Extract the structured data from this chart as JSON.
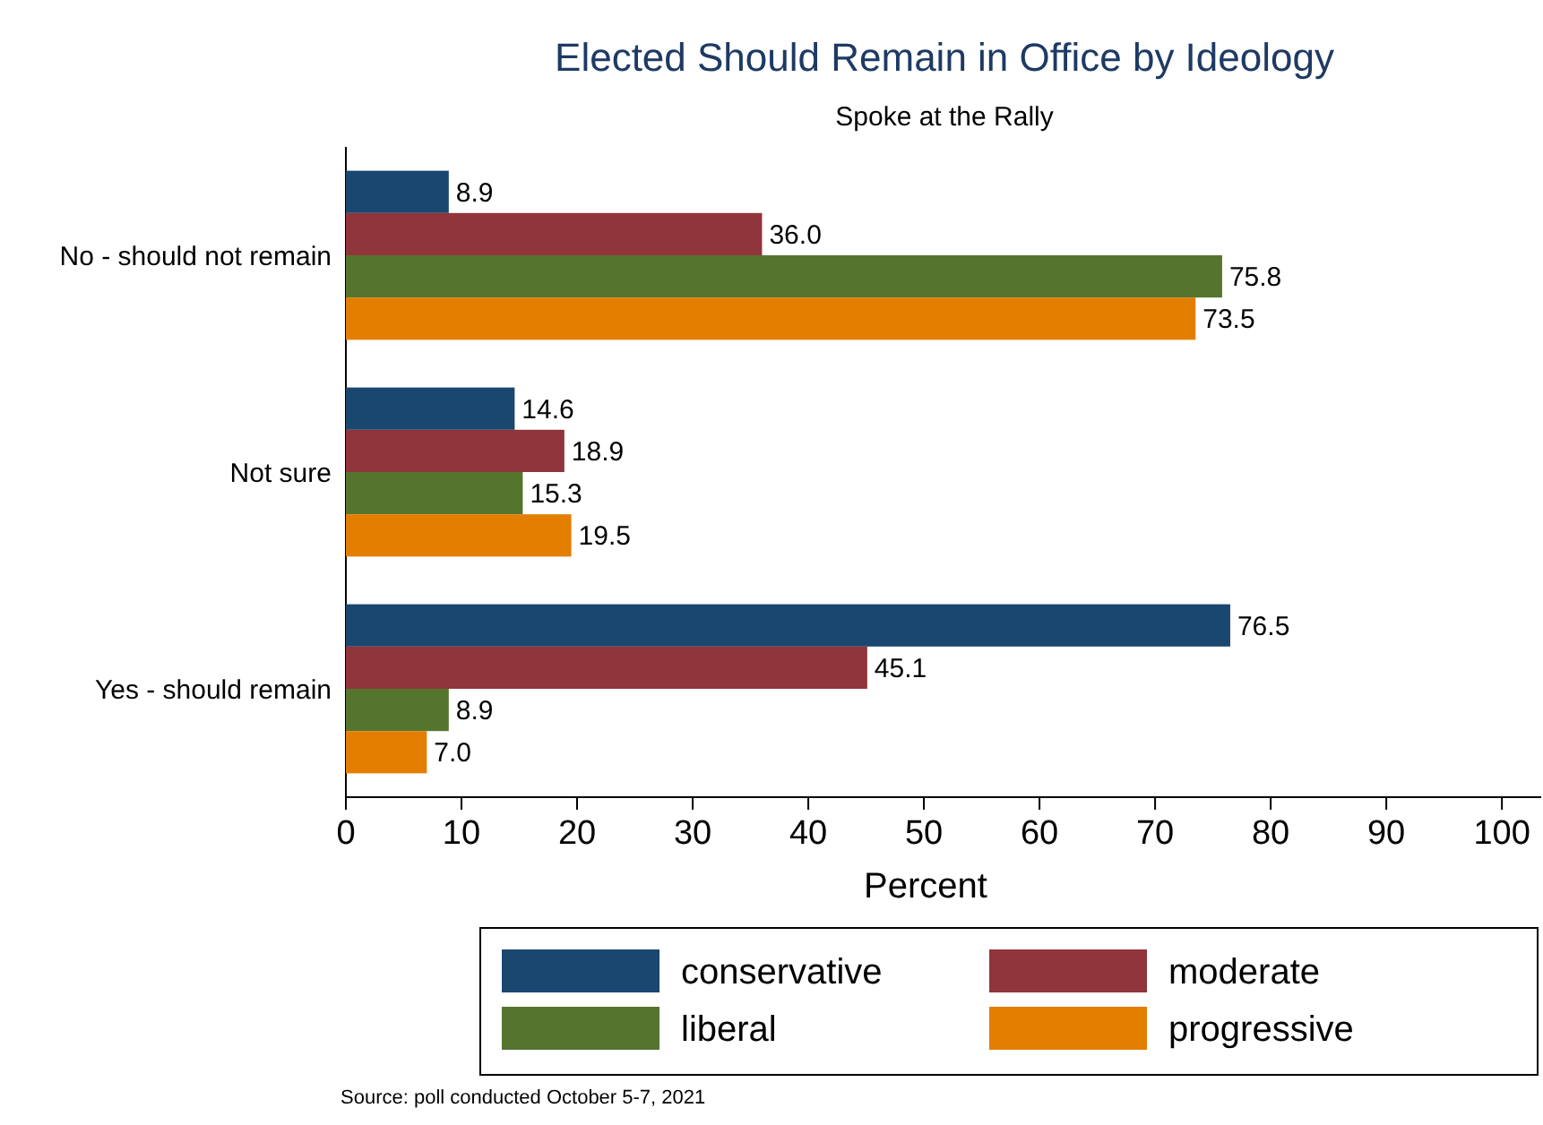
{
  "chart_data": {
    "type": "bar",
    "orientation": "horizontal",
    "title": "Elected Should Remain in Office by Ideology",
    "subtitle": "Spoke at the Rally",
    "xlabel": "Percent",
    "categories": [
      "No - should not remain",
      "Not sure",
      "Yes - should remain"
    ],
    "series": [
      {
        "name": "conservative",
        "color": "#1a476f",
        "values": [
          8.9,
          14.6,
          76.5
        ],
        "value_labels": [
          "8.9",
          "14.6",
          "76.5"
        ]
      },
      {
        "name": "moderate",
        "color": "#90353b",
        "values": [
          36.0,
          18.9,
          45.1
        ],
        "value_labels": [
          "36.0",
          "18.9",
          "45.1"
        ]
      },
      {
        "name": "liberal",
        "color": "#55752f",
        "values": [
          75.8,
          15.3,
          8.9
        ],
        "value_labels": [
          "75.8",
          "15.3",
          "8.9"
        ]
      },
      {
        "name": "progressive",
        "color": "#e37e00",
        "values": [
          73.5,
          19.5,
          7.0
        ],
        "value_labels": [
          "73.5",
          "19.5",
          "7.0"
        ]
      }
    ],
    "xlim": [
      0,
      103.4
    ],
    "xticks": [
      0,
      10,
      20,
      30,
      40,
      50,
      60,
      70,
      80,
      90,
      100
    ],
    "legend": "bottom",
    "grid": false,
    "annotations": [
      "Source: poll conducted October 5-7, 2021"
    ]
  }
}
